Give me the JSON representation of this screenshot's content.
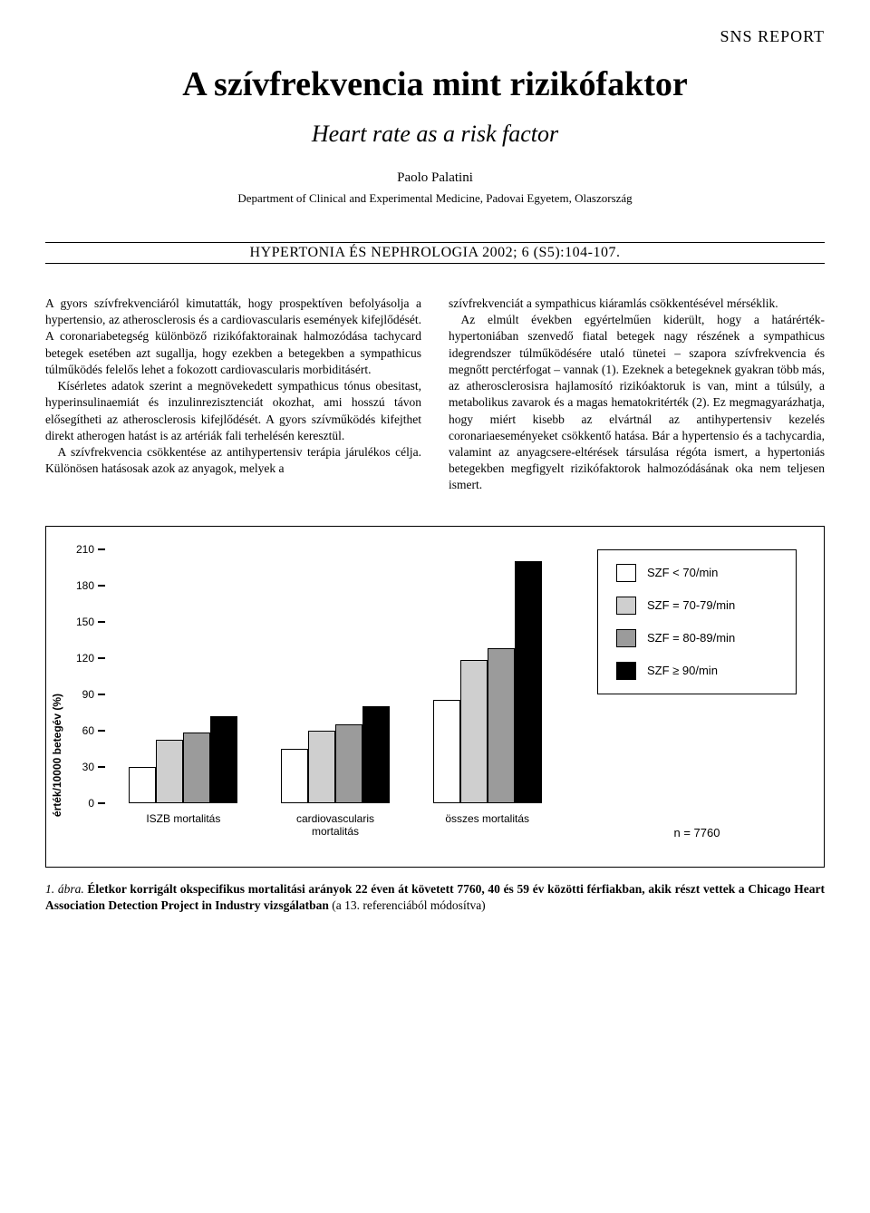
{
  "header_label": "SNS REPORT",
  "title": "A szívfrekvencia mint rizikófaktor",
  "subtitle": "Heart rate as a risk factor",
  "author": "Paolo Palatini",
  "affiliation": "Department of Clinical and Experimental Medicine, Padovai Egyetem, Olaszország",
  "journal_line": "HYPERTONIA ÉS NEPHROLOGIA 2002; 6 (S5):104-107.",
  "body": {
    "left": [
      "A gyors szívfrekvenciáról kimutatták, hogy prospektíven befolyásolja a hypertensio, az atherosclerosis és a cardiovascularis események kifejlődését. A coronariabetegség különböző rizikófaktorainak halmozódása tachycard betegek esetében azt sugallja, hogy ezekben a betegekben a sympathicus túlműködés felelős lehet a fokozott cardiovascularis morbiditásért.",
      "Kísérletes adatok szerint a megnövekedett sympathicus tónus obesitast, hyperinsulinaemiát és inzulinrezisztenciát okozhat, ami hosszú távon elősegítheti az atherosclerosis kifejlődését. A gyors szívműködés kifejthet direkt atherogen hatást is az artériák fali terhelésén keresztül.",
      "A szívfrekvencia csökkentése az antihypertensiv terápia járulékos célja. Különösen hatásosak azok az anyagok, melyek a"
    ],
    "right": [
      "szívfrekvenciát a sympathicus kiáramlás csökkentésével mérséklik.",
      "Az elmúlt években egyértelműen kiderült, hogy a határérték-hypertoniában szenvedő fiatal betegek nagy részének a sympathicus idegrendszer túlműködésére utaló tünetei – szapora szívfrekvencia és megnőtt perctérfogat – vannak (1). Ezeknek a betegeknek gyakran több más, az atherosclerosisra hajlamosító rizikóaktoruk is van, mint a túlsúly, a metabolikus zavarok és a magas hematokritérték (2). Ez megmagyarázhatja, hogy miért kisebb az elvártnál az antihypertensiv kezelés coronariaeseményeket csökkentő hatása. Bár a hypertensio és a tachycardia, valamint az anyagcsere-eltérések társulása régóta ismert, a hypertoniás betegekben megfigyelt rizikófaktorok halmozódásának oka nem teljesen ismert."
    ]
  },
  "chart": {
    "type": "bar",
    "y_axis_label": "érték/10000 betegév (%)",
    "ylim": [
      0,
      210
    ],
    "ytick_step": 30,
    "yticks": [
      0,
      30,
      60,
      90,
      120,
      150,
      180,
      210
    ],
    "categories": [
      "ISZB mortalitás",
      "cardiovascularis mortalitás",
      "összes mortalitás"
    ],
    "series": [
      {
        "label": "SZF < 70/min",
        "color": "#ffffff",
        "values": [
          30,
          45,
          85
        ]
      },
      {
        "label": "SZF = 70-79/min",
        "color": "#cfcfcf",
        "values": [
          52,
          60,
          118
        ]
      },
      {
        "label": "SZF = 80-89/min",
        "color": "#9b9b9b",
        "values": [
          58,
          65,
          128
        ]
      },
      {
        "label": "SZF ≥ 90/min",
        "color": "#000000",
        "values": [
          72,
          80,
          200
        ]
      }
    ],
    "n_label": "n = 7760",
    "background_color": "#ffffff",
    "border_color": "#000000"
  },
  "caption": {
    "label": "1. ábra.",
    "bold": "Életkor korrigált okspecifikus mortalitási arányok 22 éven át követett 7760, 40 és 59 év közötti férfiakban, akik részt vettek a Chicago Heart Association Detection Project in Industry vizsgálatban",
    "rest": " (a 13. referenciából módosítva)"
  }
}
